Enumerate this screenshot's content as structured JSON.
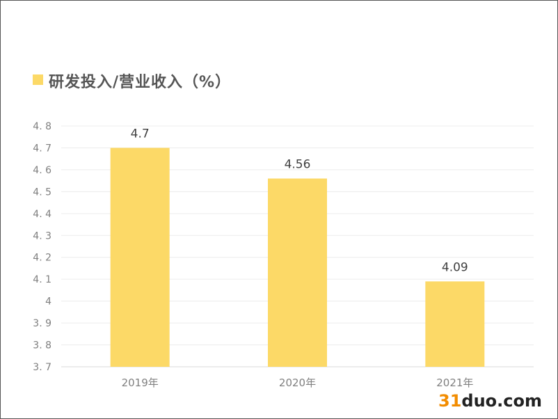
{
  "chart_data": {
    "type": "bar",
    "title": "研发投入/营业收入（%）",
    "categories": [
      "2019年",
      "2020年",
      "2021年"
    ],
    "values": [
      4.7,
      4.56,
      4.09
    ],
    "value_labels": [
      "4.7",
      "4.56",
      "4.09"
    ],
    "ylim": [
      3.7,
      4.8
    ],
    "yticks": [
      3.7,
      3.8,
      3.9,
      4.0,
      4.1,
      4.2,
      4.3,
      4.4,
      4.5,
      4.6,
      4.7,
      4.8
    ],
    "ytick_labels": [
      "3. 7",
      "3. 8",
      "3. 9",
      "4",
      "4. 1",
      "4. 2",
      "4. 3",
      "4. 4",
      "4. 5",
      "4. 6",
      "4. 7",
      "4. 8"
    ],
    "grid": true,
    "legend_position": "top-left",
    "bar_color": "#fcd967"
  },
  "watermark": {
    "number": "31",
    "text": "duo.com"
  }
}
